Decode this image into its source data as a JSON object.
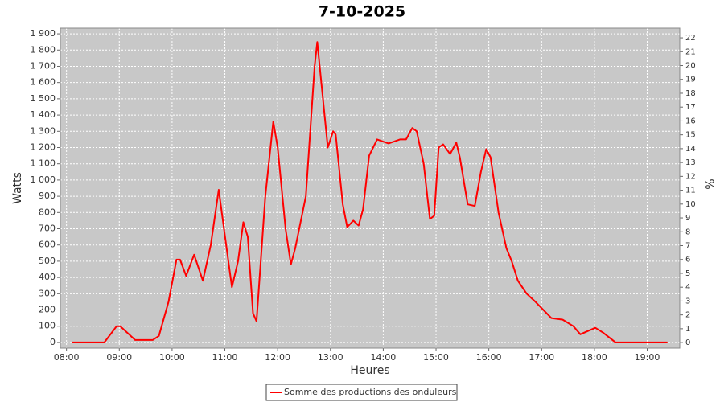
{
  "chart_data": {
    "type": "line",
    "title": "7-10-2025",
    "x_label": "Heures",
    "y_label": "Watts",
    "y2_label": "%",
    "xlim": [
      "07:53",
      "19:37"
    ],
    "xticks": [
      "08:00",
      "09:00",
      "10:00",
      "11:00",
      "12:00",
      "13:00",
      "14:00",
      "15:00",
      "16:00",
      "17:00",
      "18:00",
      "19:00"
    ],
    "ylim": [
      -35,
      1935
    ],
    "yticks": [
      0,
      100,
      200,
      300,
      400,
      500,
      600,
      700,
      800,
      900,
      {
        "value": 1000,
        "label": "1 000"
      },
      {
        "value": 1100,
        "label": "1 100"
      },
      {
        "value": 1200,
        "label": "1 200"
      },
      {
        "value": 1300,
        "label": "1 300"
      },
      {
        "value": 1400,
        "label": "1 400"
      },
      {
        "value": 1500,
        "label": "1 500"
      },
      {
        "value": 1600,
        "label": "1 600"
      },
      {
        "value": 1700,
        "label": "1 700"
      },
      {
        "value": 1800,
        "label": "1 800"
      },
      {
        "value": 1900,
        "label": "1 900"
      }
    ],
    "y2lim": [
      -0.4,
      22.7
    ],
    "y2ticks": [
      0,
      1,
      2,
      3,
      4,
      5,
      6,
      7,
      8,
      9,
      10,
      11,
      12,
      13,
      14,
      15,
      16,
      17,
      18,
      19,
      20,
      21,
      22
    ],
    "grid": true,
    "x": [
      "08:06",
      "08:43",
      "08:57",
      "09:01",
      "09:18",
      "09:38",
      "09:45",
      "09:56",
      "10:05",
      "10:09",
      "10:16",
      "10:25",
      "10:35",
      "10:44",
      "10:53",
      "11:02",
      "11:08",
      "11:15",
      "11:21",
      "11:26",
      "11:32",
      "11:36",
      "11:46",
      "11:55",
      "12:00",
      "12:09",
      "12:15",
      "12:20",
      "12:32",
      "12:42",
      "12:45",
      "12:57",
      "13:03",
      "13:06",
      "13:14",
      "13:19",
      "13:26",
      "13:32",
      "13:37",
      "13:44",
      "13:53",
      "14:06",
      "14:19",
      "14:26",
      "14:33",
      "14:38",
      "14:46",
      "14:53",
      "14:58",
      "15:03",
      "15:08",
      "15:16",
      "15:23",
      "15:27",
      "15:36",
      "15:44",
      "15:51",
      "15:57",
      "16:02",
      "16:11",
      "16:20",
      "16:26",
      "16:33",
      "16:43",
      "16:53",
      "17:11",
      "17:24",
      "17:36",
      "17:44",
      "18:01",
      "18:10",
      "18:24",
      "19:23"
    ],
    "series": [
      {
        "name": "Somme des productions des onduleurs",
        "color": "#ff0000",
        "values": [
          0,
          0,
          100,
          100,
          15,
          15,
          40,
          250,
          510,
          510,
          410,
          540,
          380,
          600,
          940,
          580,
          340,
          500,
          740,
          650,
          180,
          130,
          900,
          1360,
          1200,
          700,
          480,
          580,
          900,
          1700,
          1850,
          1200,
          1300,
          1280,
          850,
          710,
          750,
          720,
          820,
          1150,
          1250,
          1225,
          1250,
          1250,
          1320,
          1300,
          1100,
          760,
          780,
          1200,
          1220,
          1160,
          1230,
          1140,
          850,
          840,
          1050,
          1190,
          1140,
          800,
          580,
          500,
          380,
          300,
          250,
          150,
          140,
          100,
          50,
          90,
          60,
          0,
          0
        ]
      }
    ]
  }
}
